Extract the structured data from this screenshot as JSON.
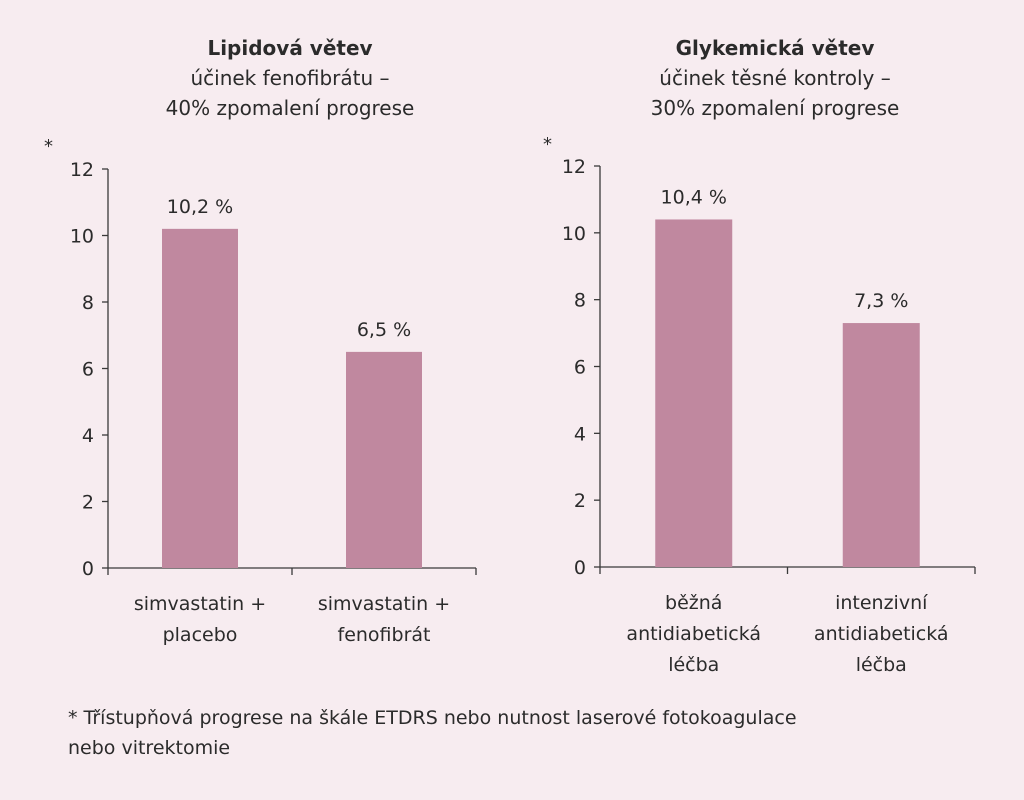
{
  "chart_data": [
    {
      "type": "bar",
      "title": "Lipidová větev",
      "subtitle": [
        "účinek fenofibrátu –",
        "40% zpomalení progrese"
      ],
      "ylabel": "*",
      "ylim": [
        0,
        12
      ],
      "yticks": [
        0,
        2,
        4,
        6,
        8,
        10,
        12
      ],
      "categories": [
        [
          "simvastatin +",
          "placebo"
        ],
        [
          "simvastatin +",
          "fenofibrát"
        ]
      ],
      "values": [
        10.2,
        6.5
      ],
      "data_labels": [
        "10,2 %",
        "6,5 %"
      ],
      "bar_color": "#c0889f",
      "grid": false
    },
    {
      "type": "bar",
      "title": "Glykemická větev",
      "subtitle": [
        "účinek těsné kontroly –",
        "30% zpomalení progrese"
      ],
      "ylabel": "*",
      "ylim": [
        0,
        12
      ],
      "yticks": [
        0,
        2,
        4,
        6,
        8,
        10,
        12
      ],
      "categories": [
        [
          "běžná",
          "antidiabetická",
          "léčba"
        ],
        [
          "intenzivní",
          "antidiabetická",
          "léčba"
        ]
      ],
      "values": [
        10.4,
        7.3
      ],
      "data_labels": [
        "10,4 %",
        "7,3 %"
      ],
      "bar_color": "#c0889f",
      "grid": false
    }
  ],
  "footnote": [
    "* Třístupňová progrese na škále ETDRS nebo nutnost laserové fotokoagulace",
    "nebo vitrektomie"
  ]
}
